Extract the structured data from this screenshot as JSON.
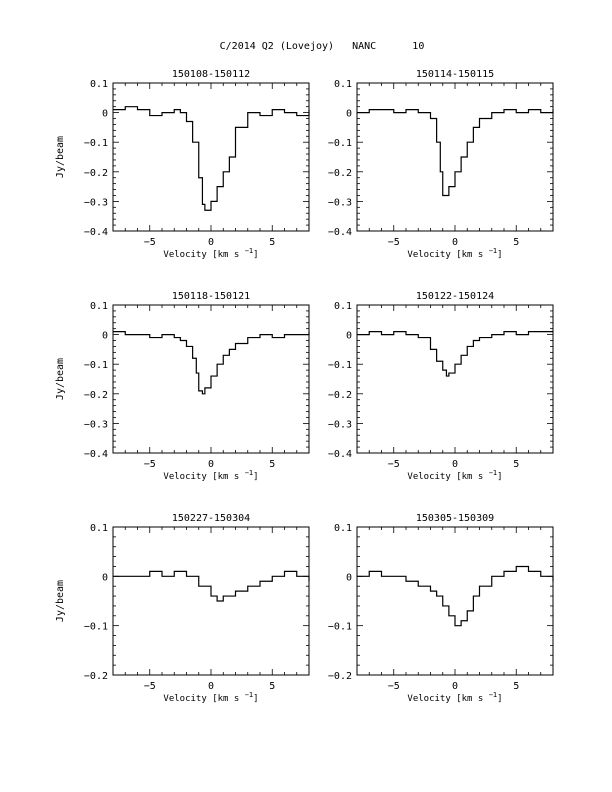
{
  "figure": {
    "title": "C/2014 Q2 (Lovejoy)   NANC      10",
    "xlabel": "Velocity [km s",
    "xlabel_sup": "−1",
    "xlabel_close": "]",
    "ylabel": "Jy/beam"
  },
  "chart_data": [
    {
      "type": "line",
      "title": "150108-150112",
      "xlabel": "Velocity [km s−1]",
      "ylabel": "Jy/beam",
      "xlim": [
        -8,
        8
      ],
      "ylim": [
        -0.4,
        0.1
      ],
      "x_ticks": [
        -5,
        0,
        5
      ],
      "y_ticks": [
        0.1,
        0,
        -0.1,
        -0.2,
        -0.3,
        -0.4
      ],
      "x": [
        -8,
        -7,
        -6,
        -5,
        -4,
        -3,
        -2.5,
        -2,
        -1.5,
        -1,
        -0.7,
        -0.5,
        0,
        0.5,
        1,
        1.5,
        2,
        3,
        4,
        5,
        6,
        7,
        8
      ],
      "y": [
        0.01,
        0.02,
        0.01,
        -0.01,
        0,
        0.01,
        0.0,
        -0.03,
        -0.1,
        -0.22,
        -0.31,
        -0.33,
        -0.3,
        -0.25,
        -0.2,
        -0.15,
        -0.05,
        0.0,
        -0.01,
        0.01,
        0.0,
        -0.01,
        0.01
      ]
    },
    {
      "type": "line",
      "title": "150114-150115",
      "xlabel": "Velocity [km s−1]",
      "ylabel": "Jy/beam",
      "xlim": [
        -8,
        8
      ],
      "ylim": [
        -0.4,
        0.1
      ],
      "x_ticks": [
        -5,
        0,
        5
      ],
      "y_ticks": [
        0.1,
        0,
        -0.1,
        -0.2,
        -0.3,
        -0.4
      ],
      "x": [
        -8,
        -7,
        -6,
        -5,
        -4,
        -3,
        -2.5,
        -2,
        -1.5,
        -1.2,
        -1,
        -0.5,
        0,
        0.5,
        1,
        1.5,
        2,
        3,
        4,
        5,
        6,
        7,
        8
      ],
      "y": [
        0.0,
        0.01,
        0.01,
        0.0,
        0.01,
        0.0,
        0.0,
        -0.02,
        -0.1,
        -0.2,
        -0.28,
        -0.25,
        -0.2,
        -0.15,
        -0.1,
        -0.05,
        -0.02,
        0.0,
        0.01,
        0.0,
        0.01,
        0.0,
        0.01
      ]
    },
    {
      "type": "line",
      "title": "150118-150121",
      "xlabel": "Velocity [km s−1]",
      "ylabel": "Jy/beam",
      "xlim": [
        -8,
        8
      ],
      "ylim": [
        -0.4,
        0.1
      ],
      "x_ticks": [
        -5,
        0,
        5
      ],
      "y_ticks": [
        0.1,
        0,
        -0.1,
        -0.2,
        -0.3,
        -0.4
      ],
      "x": [
        -8,
        -7,
        -6,
        -5,
        -4,
        -3,
        -2.5,
        -2,
        -1.5,
        -1.2,
        -1,
        -0.7,
        -0.5,
        0,
        0.5,
        1,
        1.5,
        2,
        3,
        4,
        5,
        6,
        7,
        8
      ],
      "y": [
        0.01,
        0.0,
        0.0,
        -0.01,
        0.0,
        -0.01,
        -0.02,
        -0.04,
        -0.08,
        -0.13,
        -0.19,
        -0.2,
        -0.18,
        -0.14,
        -0.1,
        -0.07,
        -0.05,
        -0.03,
        -0.01,
        0.0,
        -0.01,
        0.0,
        0.0,
        0.01
      ]
    },
    {
      "type": "line",
      "title": "150122-150124",
      "xlabel": "Velocity [km s−1]",
      "ylabel": "Jy/beam",
      "xlim": [
        -8,
        8
      ],
      "ylim": [
        -0.4,
        0.1
      ],
      "x_ticks": [
        -5,
        0,
        5
      ],
      "y_ticks": [
        0.1,
        0,
        -0.1,
        -0.2,
        -0.3,
        -0.4
      ],
      "x": [
        -8,
        -7,
        -6,
        -5,
        -4,
        -3,
        -2,
        -1.5,
        -1,
        -0.7,
        -0.5,
        0,
        0.5,
        1,
        1.5,
        2,
        3,
        4,
        5,
        6,
        7,
        8
      ],
      "y": [
        0.0,
        0.01,
        0.0,
        0.01,
        0.0,
        -0.01,
        -0.05,
        -0.09,
        -0.12,
        -0.14,
        -0.13,
        -0.1,
        -0.07,
        -0.04,
        -0.02,
        -0.01,
        0.0,
        0.01,
        0.0,
        0.01,
        0.01,
        0.01
      ]
    },
    {
      "type": "line",
      "title": "150227-150304",
      "xlabel": "Velocity [km s−1]",
      "ylabel": "Jy/beam",
      "xlim": [
        -8,
        8
      ],
      "ylim": [
        -0.2,
        0.1
      ],
      "x_ticks": [
        -5,
        0,
        5
      ],
      "y_ticks": [
        0.1,
        0,
        -0.1,
        -0.2
      ],
      "x": [
        -8,
        -7,
        -6,
        -5,
        -4,
        -3,
        -2,
        -1,
        0,
        0.5,
        1,
        2,
        3,
        4,
        5,
        6,
        7,
        8
      ],
      "y": [
        0.0,
        0.0,
        0.0,
        0.01,
        0.0,
        0.01,
        0.0,
        -0.02,
        -0.04,
        -0.05,
        -0.04,
        -0.03,
        -0.02,
        -0.01,
        0.0,
        0.01,
        0.0,
        -0.01
      ]
    },
    {
      "type": "line",
      "title": "150305-150309",
      "xlabel": "Velocity [km s−1]",
      "ylabel": "Jy/beam",
      "xlim": [
        -8,
        8
      ],
      "ylim": [
        -0.2,
        0.1
      ],
      "x_ticks": [
        -5,
        0,
        5
      ],
      "y_ticks": [
        0.1,
        0,
        -0.1,
        -0.2
      ],
      "x": [
        -8,
        -7,
        -6,
        -5,
        -4,
        -3,
        -2,
        -1.5,
        -1,
        -0.5,
        0,
        0.5,
        1,
        1.5,
        2,
        3,
        4,
        5,
        6,
        7,
        8
      ],
      "y": [
        0.0,
        0.01,
        0.0,
        0.0,
        -0.01,
        -0.02,
        -0.03,
        -0.04,
        -0.06,
        -0.08,
        -0.1,
        -0.09,
        -0.07,
        -0.04,
        -0.02,
        0.0,
        0.01,
        0.02,
        0.01,
        0.0,
        -0.01
      ]
    }
  ]
}
